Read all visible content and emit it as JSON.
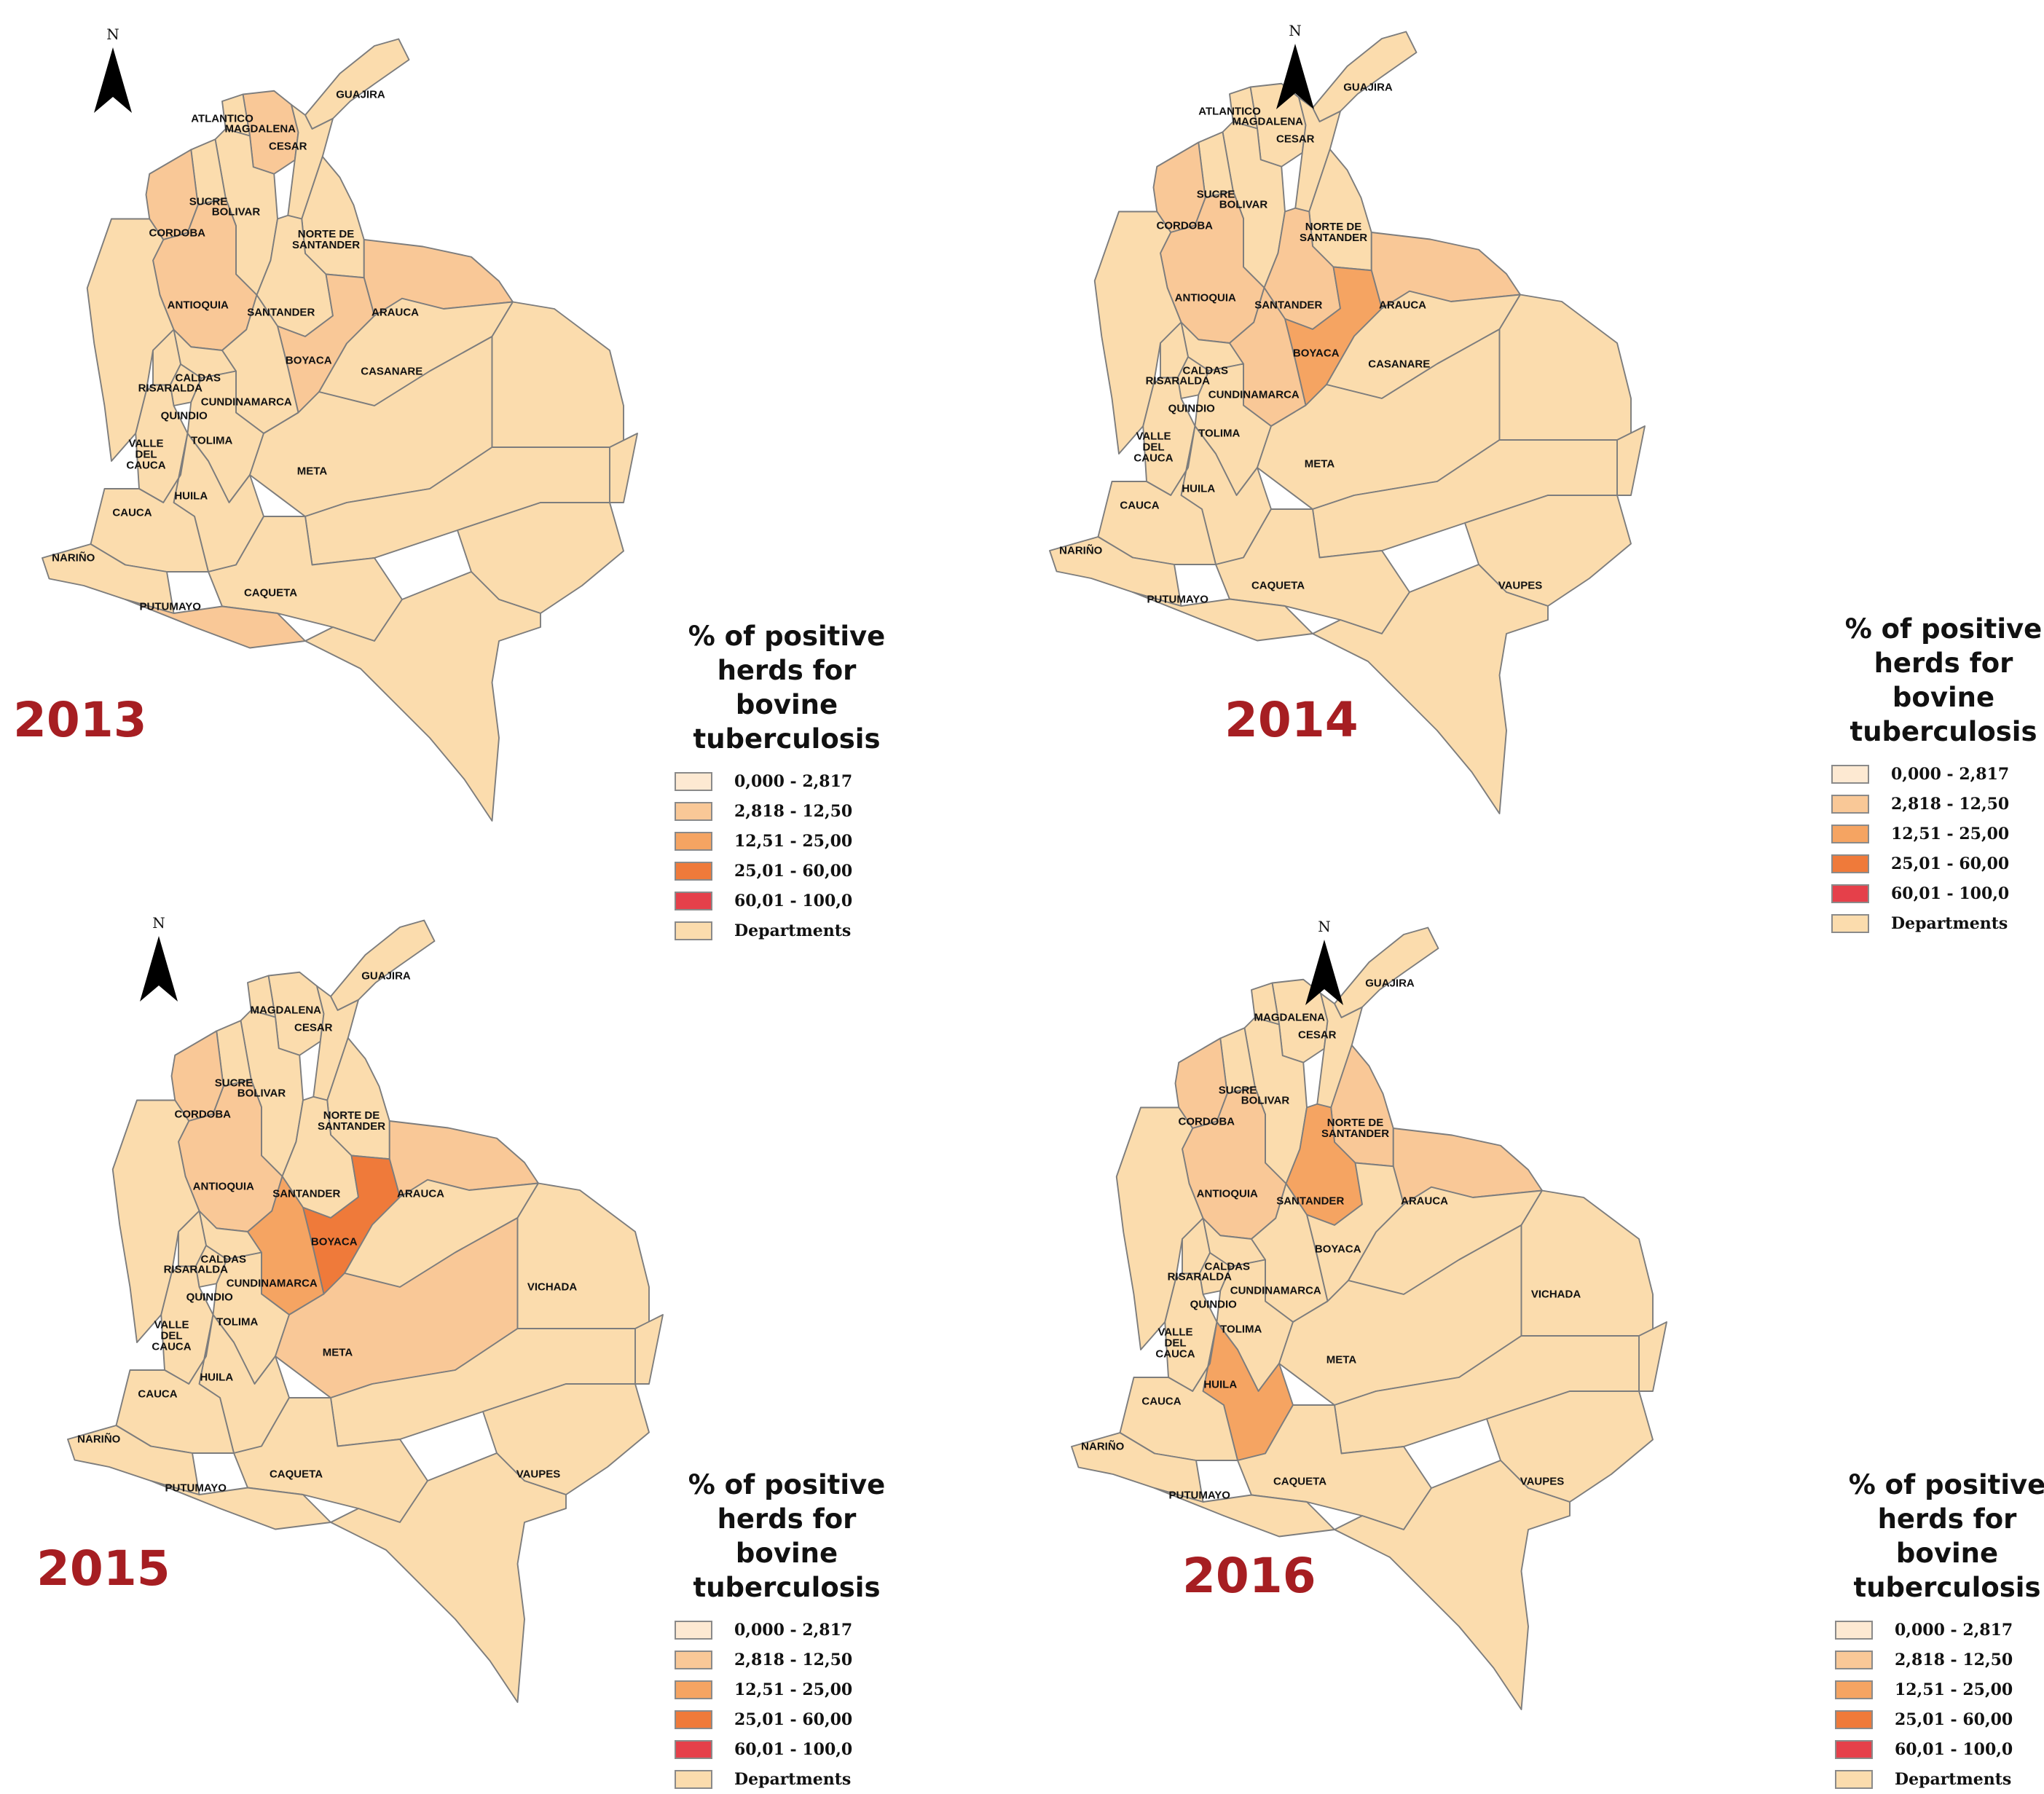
{
  "colors": {
    "class_0": "#fde9d2",
    "class_1": "#f9c897",
    "class_2": "#f5a462",
    "class_3": "#ef7a3a",
    "class_4": "#e5404a",
    "departments": "#fbdcad",
    "border": "#7d7d7d",
    "year_text": "#a61e22"
  },
  "north_letter": "N",
  "legend": {
    "title_lines": [
      "% of positive",
      "herds for",
      "bovine",
      "tuberculosis"
    ],
    "items": [
      {
        "label": "0,000 - 2,817",
        "color_key": "class_0"
      },
      {
        "label": "2,818 - 12,50",
        "color_key": "class_1"
      },
      {
        "label": "12,51 - 25,00",
        "color_key": "class_2"
      },
      {
        "label": "25,01 - 60,00",
        "color_key": "class_3"
      },
      {
        "label": "60,01 - 100,0",
        "color_key": "class_4"
      },
      {
        "label": "Departments",
        "color_key": "departments"
      }
    ]
  },
  "panels": [
    {
      "year": "2013",
      "classes": {
        "ANTIOQUIA": "class_1",
        "CORDOBA": "class_1",
        "MAGDALENA": "class_1",
        "BOYACA": "class_1",
        "ARAUCA": "class_1",
        "PUTUMAYO": "class_1"
      },
      "labels": [
        "GUAJIRA",
        "ATLANTICO",
        "MAGDALENA",
        "CESAR",
        "SUCRE",
        "BOLIVAR",
        "CORDOBA",
        "NORTE DE SANTANDER",
        "ANTIOQUIA",
        "SANTANDER",
        "ARAUCA",
        "BOYACA",
        "CASANARE",
        "CALDAS",
        "RISARALDA",
        "CUNDINAMARCA",
        "QUINDIO",
        "TOLIMA",
        "VALLE DEL CAUCA",
        "META",
        "HUILA",
        "CAUCA",
        "NARIÑO",
        "CAQUETA",
        "PUTUMAYO"
      ]
    },
    {
      "year": "2014",
      "classes": {
        "ANTIOQUIA": "class_1",
        "CORDOBA": "class_1",
        "BOYACA": "class_2",
        "CUNDINAMARCA": "class_1",
        "SANTANDER": "class_1",
        "ARAUCA": "class_1"
      },
      "labels": [
        "GUAJIRA",
        "ATLANTICO",
        "MAGDALENA",
        "CESAR",
        "SUCRE",
        "BOLIVAR",
        "CORDOBA",
        "NORTE DE SANTANDER",
        "ANTIOQUIA",
        "SANTANDER",
        "ARAUCA",
        "BOYACA",
        "CASANARE",
        "CALDAS",
        "RISARALDA",
        "CUNDINAMARCA",
        "QUINDIO",
        "TOLIMA",
        "VALLE DEL CAUCA",
        "META",
        "HUILA",
        "CAUCA",
        "NARIÑO",
        "CAQUETA",
        "PUTUMAYO",
        "VAUPES"
      ]
    },
    {
      "year": "2015",
      "classes": {
        "ANTIOQUIA": "class_1",
        "CORDOBA": "class_1",
        "BOYACA": "class_3",
        "CUNDINAMARCA": "class_2",
        "ARAUCA": "class_1",
        "META": "class_1"
      },
      "labels": [
        "GUAJIRA",
        "MAGDALENA",
        "CESAR",
        "SUCRE",
        "BOLIVAR",
        "CORDOBA",
        "NORTE DE SANTANDER",
        "ANTIOQUIA",
        "SANTANDER",
        "ARAUCA",
        "BOYACA",
        "CALDAS",
        "RISARALDA",
        "CUNDINAMARCA",
        "QUINDIO",
        "TOLIMA",
        "VALLE DEL CAUCA",
        "META",
        "VICHADA",
        "HUILA",
        "CAUCA",
        "NARIÑO",
        "CAQUETA",
        "PUTUMAYO",
        "VAUPES"
      ]
    },
    {
      "year": "2016",
      "classes": {
        "ANTIOQUIA": "class_1",
        "CORDOBA": "class_1",
        "SANTANDER": "class_2",
        "NORTE DE SANTANDER": "class_1",
        "ARAUCA": "class_1",
        "HUILA": "class_2"
      },
      "labels": [
        "GUAJIRA",
        "MAGDALENA",
        "CESAR",
        "SUCRE",
        "BOLIVAR",
        "CORDOBA",
        "NORTE DE SANTANDER",
        "ANTIOQUIA",
        "SANTANDER",
        "ARAUCA",
        "BOYACA",
        "CALDAS",
        "RISARALDA",
        "CUNDINAMARCA",
        "QUINDIO",
        "TOLIMA",
        "VALLE DEL CAUCA",
        "META",
        "VICHADA",
        "HUILA",
        "CAUCA",
        "NARIÑO",
        "CAQUETA",
        "PUTUMAYO",
        "VAUPES"
      ]
    }
  ]
}
